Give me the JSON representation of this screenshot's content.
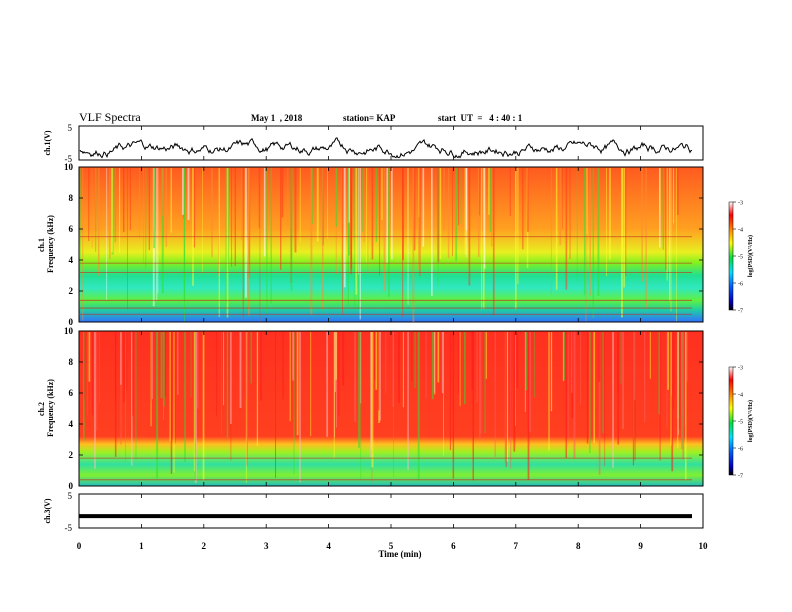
{
  "header": {
    "title": "VLF Spectra",
    "date": "May 1  , 2018",
    "station": "station= KAP",
    "start": "start  UT  =   4 : 40 : 1"
  },
  "chart_data": [
    {
      "type": "line",
      "panel": "ch1-voltage",
      "ylabel": "ch.1(V)",
      "ylim": [
        -5,
        5
      ],
      "yticks": [
        "5",
        "-5"
      ],
      "xlim": [
        0,
        10
      ],
      "description_values": "noisy trace fluctuating roughly between -4 and 1 V"
    },
    {
      "type": "heatmap",
      "panel": "ch1-spectrogram",
      "ylabel": "ch.1\nFrequency  (kHz)",
      "ylim": [
        0,
        10
      ],
      "yticks": [
        "0",
        "2",
        "4",
        "6",
        "8",
        "10"
      ],
      "xlim": [
        0,
        10
      ],
      "colorbar": {
        "label": "log(PSD)(V²/Hz)",
        "range": [
          -7,
          -3
        ],
        "ticks": [
          "-3",
          "-4",
          "-5",
          "-6",
          "-7"
        ]
      }
    },
    {
      "type": "heatmap",
      "panel": "ch2-spectrogram",
      "ylabel": "ch.2\nFrequency  (kHz)",
      "ylim": [
        0,
        10
      ],
      "yticks": [
        "0",
        "2",
        "4",
        "6",
        "8",
        "10"
      ],
      "xlim": [
        0,
        10
      ],
      "colorbar": {
        "label": "log(PSD)(V²/Hz)",
        "range": [
          -7,
          -3
        ],
        "ticks": [
          "-3",
          "-4",
          "-5",
          "-6",
          "-7"
        ]
      }
    },
    {
      "type": "line",
      "panel": "ch3-voltage",
      "ylabel": "ch.3(V)",
      "ylim": [
        -5,
        5
      ],
      "yticks": [
        "5",
        "-5"
      ],
      "xlim": [
        0,
        10
      ],
      "values_const": -1.5
    }
  ],
  "xaxis": {
    "label": "Time  (min)",
    "ticks": [
      "0",
      "1",
      "2",
      "3",
      "4",
      "5",
      "6",
      "7",
      "8",
      "9",
      "10"
    ]
  },
  "colors": {
    "spectrogram_hi": "#ff2a1a",
    "spectrogram_mid": "#ffff20",
    "spectrogram_low": "#20e020",
    "trace": "#000000"
  }
}
